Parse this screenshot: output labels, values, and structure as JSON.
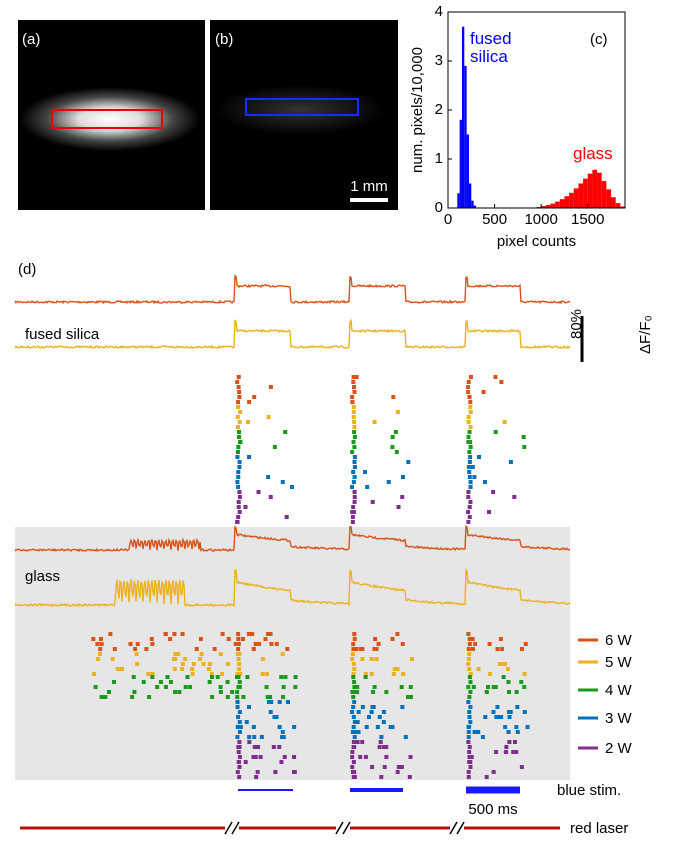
{
  "panels": {
    "a": "(a)",
    "b": "(b)",
    "c": "(c)",
    "d": "(d)"
  },
  "scale_bar": "1 mm",
  "chart_data": {
    "type": "histogram",
    "xlabel": "pixel counts",
    "ylabel": "num. pixels/10,000",
    "xlim": [
      0,
      1900
    ],
    "xticks": [
      0,
      500,
      1000,
      1500
    ],
    "ylim": [
      0,
      4
    ],
    "yticks": [
      0,
      1,
      2,
      3,
      4
    ],
    "series": [
      {
        "name": "fused silica",
        "color": "#0000ff",
        "bins": [
          100,
          125,
          150,
          175,
          200,
          225,
          250,
          275,
          300
        ],
        "values": [
          0.3,
          1.8,
          3.7,
          2.9,
          1.5,
          0.5,
          0.15,
          0.05
        ]
      },
      {
        "name": "glass",
        "color": "#ff0000",
        "bins": [
          900,
          950,
          1000,
          1050,
          1100,
          1150,
          1200,
          1250,
          1300,
          1350,
          1400,
          1450,
          1500,
          1550,
          1600,
          1650,
          1700,
          1750,
          1800,
          1850,
          1900
        ],
        "values": [
          0.01,
          0.02,
          0.04,
          0.06,
          0.09,
          0.13,
          0.18,
          0.24,
          0.31,
          0.4,
          0.5,
          0.6,
          0.7,
          0.78,
          0.72,
          0.55,
          0.38,
          0.22,
          0.1,
          0.03
        ]
      }
    ]
  },
  "traces": {
    "fused_label": "fused silica",
    "glass_label": "glass",
    "scale_pct": "80%",
    "scale_unit": "ΔF/F₀"
  },
  "legend": [
    {
      "label": "6 W",
      "color": "#d95319"
    },
    {
      "label": "5 W",
      "color": "#edb120"
    },
    {
      "label": "4 W",
      "color": "#1a9a1a"
    },
    {
      "label": "3 W",
      "color": "#0072bd"
    },
    {
      "label": "2 W",
      "color": "#7e2f8e"
    }
  ],
  "stim": {
    "blue": "blue stim.",
    "duration": "500 ms",
    "red": "red laser"
  }
}
